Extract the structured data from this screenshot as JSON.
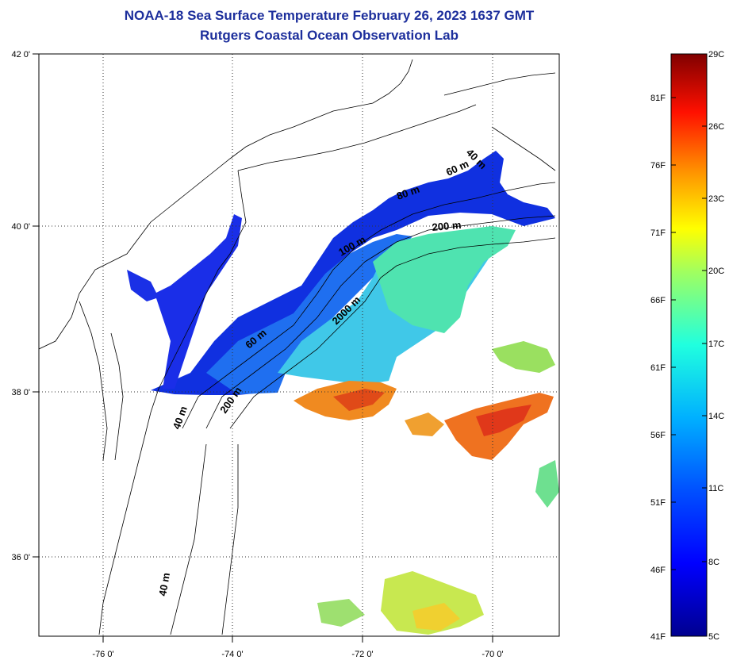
{
  "title": "NOAA-18 Sea Surface Temperature February 26, 2023 1637 GMT",
  "subtitle": "Rutgers Coastal Ocean Observation Lab",
  "map": {
    "lon_ticks": [
      "-76 0'",
      "-74 0'",
      "-72 0'",
      "-70 0'"
    ],
    "lat_ticks": [
      "42 0'",
      "40 0'",
      "38 0'",
      "36 0'"
    ],
    "grid": true,
    "contour_labels": [
      "40 m",
      "60 m",
      "80 m",
      "200 m",
      "100 m",
      "2000 m",
      "60 m",
      "200 m",
      "40 m",
      "40 m"
    ]
  },
  "colorbar": {
    "celsius_labels": [
      "29C",
      "26C",
      "23C",
      "20C",
      "17C",
      "14C",
      "11C",
      "8C",
      "5C"
    ],
    "fahrenheit_labels": [
      "81F",
      "76F",
      "71F",
      "66F",
      "61F",
      "56F",
      "51F",
      "46F",
      "41F"
    ],
    "colors": [
      "#7f0000",
      "#ff0000",
      "#ff8000",
      "#ffff00",
      "#80ff80",
      "#00ffff",
      "#0080ff",
      "#0000ff",
      "#00008f"
    ]
  }
}
